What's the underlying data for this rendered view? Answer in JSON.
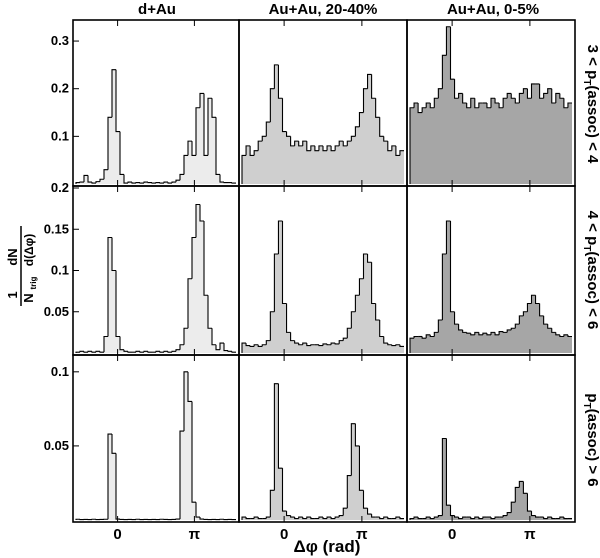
{
  "figure": {
    "column_titles": [
      "d+Au",
      "Au+Au, 20-40%",
      "Au+Au, 0-5%"
    ],
    "row_labels": [
      {
        "main": "3 < p",
        "sub": "T",
        "rest": "(assoc) < 4"
      },
      {
        "main": "4 < p",
        "sub": "T",
        "rest": "(assoc) < 6"
      },
      {
        "main": "p",
        "sub": "T",
        "rest": "(assoc) > 6"
      }
    ],
    "xlabel": "Δφ (rad)",
    "ylabel": {
      "num_one": "1",
      "num_dN": "dN",
      "den_N": "N",
      "den_sub": "trig",
      "den_rest": "d(Δφ)"
    },
    "x_tick_labels": [
      "0",
      "π"
    ],
    "fill_colors": [
      "#ececec",
      "#cfcfcf",
      "#a6a6a6"
    ]
  },
  "chart_data": [
    {
      "type": "bar",
      "row": 0,
      "col": 0,
      "xlabel": "",
      "ylabel": "",
      "ylim": [
        0,
        0.34
      ],
      "yticks": [
        0.1,
        0.2,
        0.3
      ],
      "title": "d+Au",
      "values": [
        0.003,
        0.004,
        0.018,
        0.004,
        0.002,
        0.005,
        0.01,
        0.03,
        0.14,
        0.24,
        0.11,
        0.02,
        0.002,
        0.004,
        0.002,
        0.003,
        0.002,
        0.004,
        0.003,
        0.002,
        0.003,
        0.002,
        0.004,
        0.002,
        0.004,
        0.008,
        0.02,
        0.06,
        0.09,
        0.06,
        0.16,
        0.19,
        0.06,
        0.18,
        0.14,
        0.02,
        0.004,
        0.003,
        0.003,
        0.002
      ]
    },
    {
      "type": "bar",
      "row": 0,
      "col": 1,
      "xlabel": "",
      "ylabel": "",
      "ylim": [
        0,
        0.34
      ],
      "title": "Au+Au, 20-40%",
      "values": [
        0.06,
        0.08,
        0.06,
        0.07,
        0.09,
        0.1,
        0.13,
        0.2,
        0.25,
        0.18,
        0.11,
        0.1,
        0.08,
        0.09,
        0.08,
        0.09,
        0.07,
        0.08,
        0.07,
        0.08,
        0.07,
        0.08,
        0.07,
        0.08,
        0.09,
        0.08,
        0.09,
        0.1,
        0.12,
        0.15,
        0.2,
        0.23,
        0.18,
        0.14,
        0.1,
        0.09,
        0.07,
        0.08,
        0.06,
        0.07
      ]
    },
    {
      "type": "bar",
      "row": 0,
      "col": 2,
      "xlabel": "",
      "ylabel": "",
      "ylim": [
        0,
        0.34
      ],
      "title": "Au+Au, 0-5%",
      "values": [
        0.16,
        0.17,
        0.15,
        0.16,
        0.17,
        0.16,
        0.18,
        0.2,
        0.27,
        0.33,
        0.22,
        0.18,
        0.19,
        0.17,
        0.16,
        0.18,
        0.16,
        0.17,
        0.17,
        0.16,
        0.18,
        0.17,
        0.16,
        0.18,
        0.19,
        0.18,
        0.17,
        0.19,
        0.2,
        0.18,
        0.21,
        0.21,
        0.18,
        0.19,
        0.2,
        0.17,
        0.19,
        0.18,
        0.16,
        0.17
      ]
    },
    {
      "type": "bar",
      "row": 1,
      "col": 0,
      "xlabel": "",
      "ylabel": "",
      "ylim": [
        0,
        0.2
      ],
      "yticks": [
        0.05,
        0.1,
        0.15,
        0.2
      ],
      "values": [
        0.001,
        0.002,
        0.001,
        0.002,
        0.001,
        0.002,
        0.001,
        0.02,
        0.14,
        0.1,
        0.02,
        0.004,
        0.002,
        0.001,
        0.001,
        0.002,
        0.001,
        0.002,
        0.001,
        0.001,
        0.002,
        0.001,
        0.002,
        0.001,
        0.002,
        0.004,
        0.01,
        0.03,
        0.09,
        0.14,
        0.18,
        0.16,
        0.07,
        0.03,
        0.01,
        0.004,
        0.012,
        0.003,
        0.002,
        0.001
      ]
    },
    {
      "type": "bar",
      "row": 1,
      "col": 1,
      "xlabel": "",
      "ylabel": "",
      "ylim": [
        0,
        0.2
      ],
      "values": [
        0.012,
        0.009,
        0.008,
        0.01,
        0.008,
        0.01,
        0.015,
        0.05,
        0.12,
        0.16,
        0.06,
        0.025,
        0.015,
        0.012,
        0.01,
        0.012,
        0.009,
        0.01,
        0.01,
        0.009,
        0.011,
        0.01,
        0.012,
        0.011,
        0.015,
        0.018,
        0.03,
        0.05,
        0.07,
        0.09,
        0.12,
        0.11,
        0.06,
        0.04,
        0.02,
        0.012,
        0.01,
        0.009,
        0.01,
        0.008
      ]
    },
    {
      "type": "bar",
      "row": 1,
      "col": 2,
      "xlabel": "",
      "ylabel": "",
      "ylim": [
        0,
        0.2
      ],
      "values": [
        0.018,
        0.02,
        0.02,
        0.018,
        0.022,
        0.02,
        0.025,
        0.04,
        0.12,
        0.16,
        0.05,
        0.035,
        0.028,
        0.025,
        0.024,
        0.022,
        0.025,
        0.022,
        0.024,
        0.022,
        0.025,
        0.022,
        0.026,
        0.025,
        0.028,
        0.03,
        0.035,
        0.045,
        0.05,
        0.06,
        0.07,
        0.06,
        0.045,
        0.035,
        0.03,
        0.025,
        0.022,
        0.02,
        0.022,
        0.02
      ]
    },
    {
      "type": "bar",
      "row": 2,
      "col": 0,
      "xlabel": "",
      "ylabel": "",
      "ylim": [
        0,
        0.11
      ],
      "yticks": [
        0.05,
        0.1
      ],
      "values": [
        0.0005,
        0.0003,
        0.0004,
        0.0003,
        0.0005,
        0.0003,
        0.0004,
        0.0005,
        0.058,
        0.045,
        0.0006,
        0.0004,
        0.0003,
        0.0004,
        0.0003,
        0.0005,
        0.0003,
        0.0004,
        0.0003,
        0.0004,
        0.0003,
        0.0005,
        0.0004,
        0.0003,
        0.0004,
        0.0006,
        0.06,
        0.1,
        0.08,
        0.012,
        0.002,
        0.0006,
        0.0004,
        0.0003,
        0.0004,
        0.0003,
        0.0005,
        0.0003,
        0.0004,
        0.0003
      ]
    },
    {
      "type": "bar",
      "row": 2,
      "col": 1,
      "xlabel": "",
      "ylabel": "",
      "ylim": [
        0,
        0.11
      ],
      "values": [
        0.002,
        0.001,
        0.001,
        0.002,
        0.001,
        0.001,
        0.002,
        0.02,
        0.092,
        0.035,
        0.006,
        0.003,
        0.002,
        0.001,
        0.002,
        0.001,
        0.002,
        0.001,
        0.001,
        0.002,
        0.001,
        0.002,
        0.001,
        0.002,
        0.003,
        0.008,
        0.03,
        0.065,
        0.05,
        0.02,
        0.008,
        0.004,
        0.002,
        0.002,
        0.001,
        0.002,
        0.001,
        0.001,
        0.002,
        0.001
      ]
    },
    {
      "type": "bar",
      "row": 2,
      "col": 2,
      "xlabel": "",
      "ylabel": "",
      "ylim": [
        0,
        0.11
      ],
      "values": [
        0.001,
        0.002,
        0.001,
        0.001,
        0.002,
        0.001,
        0.002,
        0.003,
        0.055,
        0.01,
        0.003,
        0.002,
        0.001,
        0.002,
        0.002,
        0.001,
        0.002,
        0.001,
        0.002,
        0.002,
        0.001,
        0.002,
        0.002,
        0.003,
        0.005,
        0.012,
        0.022,
        0.026,
        0.018,
        0.006,
        0.003,
        0.002,
        0.002,
        0.001,
        0.002,
        0.001,
        0.001,
        0.002,
        0.001,
        0.001
      ]
    }
  ]
}
